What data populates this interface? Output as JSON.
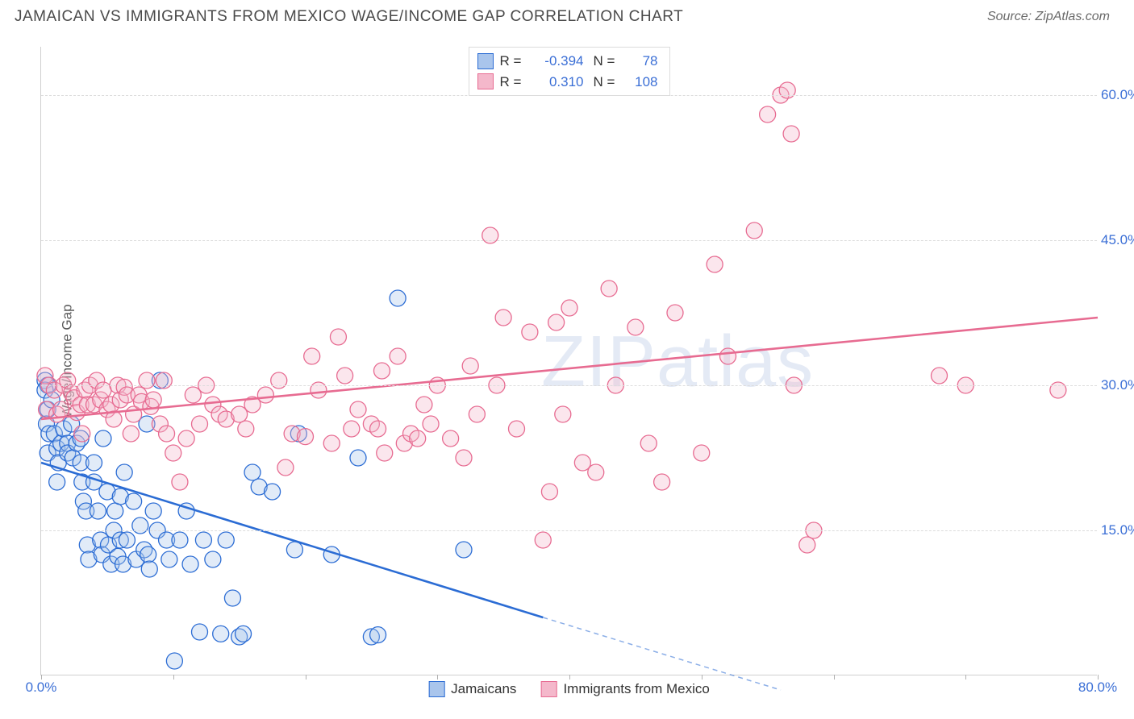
{
  "title": "JAMAICAN VS IMMIGRANTS FROM MEXICO WAGE/INCOME GAP CORRELATION CHART",
  "source": "Source: ZipAtlas.com",
  "watermark": "ZIPatlas",
  "yAxisTitle": "Wage/Income Gap",
  "chart": {
    "type": "scatter",
    "background": "#ffffff",
    "grid_color": "#dcdcdc",
    "axis_color": "#d0d0d0",
    "tick_label_color": "#3b6fd6",
    "label_fontsize": 17,
    "xlim": [
      0,
      80
    ],
    "ylim": [
      0,
      65
    ],
    "x_ticks": [
      0,
      10,
      20,
      30,
      40,
      50,
      60,
      70,
      80
    ],
    "x_tick_labels": {
      "0": "0.0%",
      "80": "80.0%"
    },
    "y_ticks": [
      15,
      30,
      45,
      60
    ],
    "y_tick_labels": {
      "15": "15.0%",
      "30": "30.0%",
      "45": "45.0%",
      "60": "60.0%"
    },
    "marker_radius": 10,
    "marker_fill_opacity": 0.35,
    "marker_stroke_width": 1.3,
    "trend_line_width": 2.6
  },
  "series": [
    {
      "name": "Jamaicans",
      "color_stroke": "#2b6cd4",
      "color_fill": "#a9c5ec",
      "R": "-0.394",
      "N": "78",
      "trend": {
        "x1": 0,
        "y1": 22,
        "x2_solid": 38,
        "y2_solid": 6,
        "x2": 56,
        "y2": -1.5
      },
      "points": [
        [
          0.3,
          30.5
        ],
        [
          0.5,
          30
        ],
        [
          0.5,
          27.5
        ],
        [
          0.4,
          26
        ],
        [
          0.6,
          25
        ],
        [
          0.3,
          29.5
        ],
        [
          0.8,
          28.5
        ],
        [
          0.5,
          23
        ],
        [
          1,
          25
        ],
        [
          1.2,
          23.5
        ],
        [
          1.3,
          22
        ],
        [
          1.2,
          20
        ],
        [
          1.5,
          24
        ],
        [
          1.7,
          25.5
        ],
        [
          2,
          24
        ],
        [
          2,
          23
        ],
        [
          2.4,
          22.5
        ],
        [
          2.3,
          26
        ],
        [
          2.7,
          24
        ],
        [
          3,
          24.5
        ],
        [
          3,
          22
        ],
        [
          3.1,
          20
        ],
        [
          3.2,
          18
        ],
        [
          3.4,
          17
        ],
        [
          3.5,
          13.5
        ],
        [
          3.6,
          12
        ],
        [
          4,
          20
        ],
        [
          4,
          22
        ],
        [
          4.3,
          17
        ],
        [
          4.5,
          14
        ],
        [
          4.6,
          12.5
        ],
        [
          4.7,
          24.5
        ],
        [
          5,
          19
        ],
        [
          5.1,
          13.5
        ],
        [
          5.3,
          11.5
        ],
        [
          5.5,
          15
        ],
        [
          5.6,
          17
        ],
        [
          5.8,
          12.3
        ],
        [
          6,
          18.5
        ],
        [
          6,
          14
        ],
        [
          6.2,
          11.5
        ],
        [
          6.3,
          21
        ],
        [
          6.5,
          14
        ],
        [
          7,
          18
        ],
        [
          7.5,
          15.5
        ],
        [
          7.2,
          12
        ],
        [
          7.8,
          13
        ],
        [
          8,
          26
        ],
        [
          8.1,
          12.5
        ],
        [
          8.2,
          11
        ],
        [
          8.5,
          17
        ],
        [
          8.8,
          15
        ],
        [
          9,
          30.5
        ],
        [
          9.5,
          14
        ],
        [
          9.7,
          12
        ],
        [
          10.1,
          1.5
        ],
        [
          10.5,
          14
        ],
        [
          11,
          17
        ],
        [
          11.3,
          11.5
        ],
        [
          12,
          4.5
        ],
        [
          12.3,
          14
        ],
        [
          13,
          12
        ],
        [
          13.6,
          4.3
        ],
        [
          14,
          14
        ],
        [
          14.5,
          8
        ],
        [
          15,
          4
        ],
        [
          15.3,
          4.3
        ],
        [
          16,
          21
        ],
        [
          16.5,
          19.5
        ],
        [
          17.5,
          19
        ],
        [
          19.2,
          13
        ],
        [
          19.5,
          25
        ],
        [
          22,
          12.5
        ],
        [
          24,
          22.5
        ],
        [
          25,
          4
        ],
        [
          25.5,
          4.2
        ],
        [
          27,
          39
        ],
        [
          32,
          13
        ]
      ]
    },
    {
      "name": "Immigrants from Mexico",
      "color_stroke": "#e76b91",
      "color_fill": "#f4b8cb",
      "R": "0.310",
      "N": "108",
      "trend": {
        "x1": 0,
        "y1": 26.5,
        "x2_solid": 80,
        "y2_solid": 37,
        "x2": 80,
        "y2": 37
      },
      "points": [
        [
          0.3,
          31
        ],
        [
          0.6,
          30
        ],
        [
          0.4,
          27.5
        ],
        [
          1,
          29.5
        ],
        [
          1.2,
          27
        ],
        [
          1.5,
          27.5
        ],
        [
          1.7,
          30
        ],
        [
          2,
          30.5
        ],
        [
          2.3,
          29.2
        ],
        [
          2.5,
          28.7
        ],
        [
          2.7,
          27.2
        ],
        [
          3,
          28
        ],
        [
          3.1,
          25
        ],
        [
          3.3,
          29.5
        ],
        [
          3.5,
          28
        ],
        [
          3.7,
          30
        ],
        [
          4,
          28
        ],
        [
          4.2,
          30.5
        ],
        [
          4.5,
          28.5
        ],
        [
          4.7,
          29.5
        ],
        [
          5,
          27.5
        ],
        [
          5.3,
          28
        ],
        [
          5.5,
          26.5
        ],
        [
          5.8,
          30
        ],
        [
          6,
          28.5
        ],
        [
          6.3,
          29.8
        ],
        [
          6.5,
          29
        ],
        [
          6.8,
          25
        ],
        [
          7,
          27
        ],
        [
          7.4,
          29
        ],
        [
          7.6,
          28.3
        ],
        [
          8,
          30.5
        ],
        [
          8.3,
          27.8
        ],
        [
          8.5,
          28.5
        ],
        [
          9,
          26
        ],
        [
          9.3,
          30.5
        ],
        [
          9.5,
          25
        ],
        [
          10,
          23
        ],
        [
          10.5,
          20
        ],
        [
          11,
          24.5
        ],
        [
          11.5,
          29
        ],
        [
          12,
          26
        ],
        [
          12.5,
          30
        ],
        [
          13,
          28
        ],
        [
          13.5,
          27
        ],
        [
          14,
          26.5
        ],
        [
          15,
          27
        ],
        [
          15.5,
          25.5
        ],
        [
          16,
          28
        ],
        [
          17,
          29
        ],
        [
          18,
          30.5
        ],
        [
          18.5,
          21.5
        ],
        [
          19,
          25
        ],
        [
          20,
          24.7
        ],
        [
          20.5,
          33
        ],
        [
          21,
          29.5
        ],
        [
          22,
          24
        ],
        [
          22.5,
          35
        ],
        [
          23,
          31
        ],
        [
          23.5,
          25.5
        ],
        [
          24,
          27.5
        ],
        [
          25,
          26
        ],
        [
          25.5,
          25.5
        ],
        [
          25.8,
          31.5
        ],
        [
          26,
          23
        ],
        [
          27,
          33
        ],
        [
          27.5,
          24
        ],
        [
          28,
          25
        ],
        [
          28.5,
          24.5
        ],
        [
          29,
          28
        ],
        [
          29.5,
          26
        ],
        [
          30,
          30
        ],
        [
          31,
          24.5
        ],
        [
          32,
          22.5
        ],
        [
          32.5,
          32
        ],
        [
          33,
          27
        ],
        [
          34,
          45.5
        ],
        [
          34.5,
          30
        ],
        [
          35,
          37
        ],
        [
          36,
          25.5
        ],
        [
          37,
          35.5
        ],
        [
          38,
          14
        ],
        [
          38.5,
          19
        ],
        [
          39,
          36.5
        ],
        [
          39.5,
          27
        ],
        [
          40,
          38
        ],
        [
          41,
          22
        ],
        [
          42,
          21
        ],
        [
          43,
          40
        ],
        [
          43.5,
          30
        ],
        [
          45,
          36
        ],
        [
          46,
          24
        ],
        [
          47,
          20
        ],
        [
          48,
          37.5
        ],
        [
          50,
          23
        ],
        [
          51,
          42.5
        ],
        [
          52,
          33
        ],
        [
          54,
          46
        ],
        [
          55,
          58
        ],
        [
          56,
          60
        ],
        [
          56.5,
          60.5
        ],
        [
          56.8,
          56
        ],
        [
          57,
          30
        ],
        [
          58,
          13.5
        ],
        [
          58.5,
          15
        ],
        [
          68,
          31
        ],
        [
          70,
          30
        ],
        [
          77,
          29.5
        ]
      ]
    }
  ],
  "legend_bottom": [
    {
      "label": "Jamaicans",
      "fill": "#a9c5ec",
      "stroke": "#2b6cd4"
    },
    {
      "label": "Immigrants from Mexico",
      "fill": "#f4b8cb",
      "stroke": "#e76b91"
    }
  ]
}
